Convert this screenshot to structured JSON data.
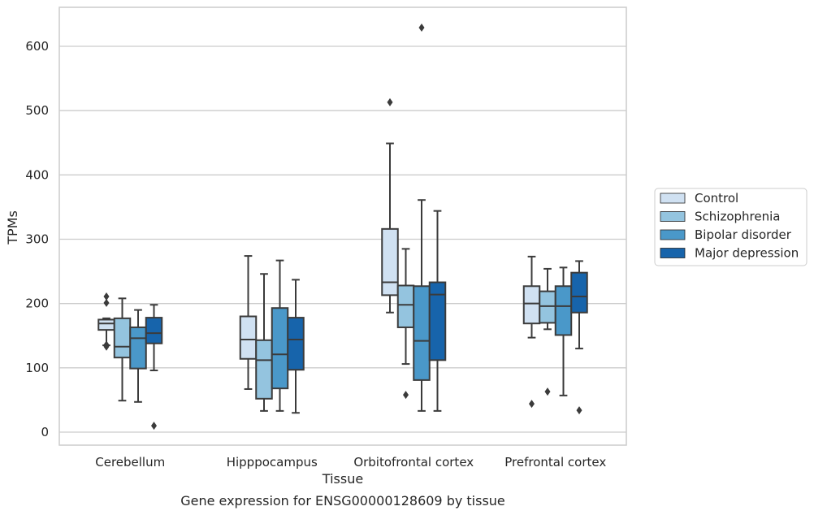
{
  "chart_data": {
    "type": "box",
    "title": "Gene expression for ENSG00000128609 by tissue",
    "xlabel": "Tissue",
    "ylabel": "TPMs",
    "ylim": [
      -20,
      660
    ],
    "yticks": [
      0,
      100,
      200,
      300,
      400,
      500,
      600
    ],
    "grid": "horizontal",
    "legend_position": "right",
    "categories": [
      "Cerebellum",
      "Hipppocampus",
      "Orbitofrontal cortex",
      "Prefrontal cortex"
    ],
    "series": [
      {
        "name": "Control",
        "color": "#d0e1f2",
        "boxes": [
          {
            "whisker_low": 135,
            "q1": 159,
            "median": 169,
            "q3": 175,
            "whisker_high": 177,
            "outliers": [
              136,
              133,
              201,
              211
            ]
          },
          {
            "whisker_low": 67,
            "q1": 114,
            "median": 144,
            "q3": 180,
            "whisker_high": 274,
            "outliers": []
          },
          {
            "whisker_low": 186,
            "q1": 213,
            "median": 233,
            "q3": 316,
            "whisker_high": 449,
            "outliers": [
              513
            ]
          },
          {
            "whisker_low": 147,
            "q1": 169,
            "median": 200,
            "q3": 227,
            "whisker_high": 273,
            "outliers": [
              44
            ]
          }
        ]
      },
      {
        "name": "Schizophrenia",
        "color": "#94c4df",
        "boxes": [
          {
            "whisker_low": 49,
            "q1": 116,
            "median": 133,
            "q3": 177,
            "whisker_high": 208,
            "outliers": []
          },
          {
            "whisker_low": 33,
            "q1": 52,
            "median": 112,
            "q3": 143,
            "whisker_high": 246,
            "outliers": []
          },
          {
            "whisker_low": 106,
            "q1": 163,
            "median": 198,
            "q3": 228,
            "whisker_high": 285,
            "outliers": [
              58
            ]
          },
          {
            "whisker_low": 160,
            "q1": 170,
            "median": 196,
            "q3": 219,
            "whisker_high": 254,
            "outliers": [
              63
            ]
          }
        ]
      },
      {
        "name": "Bipolar disorder",
        "color": "#4a98c9",
        "boxes": [
          {
            "whisker_low": 47,
            "q1": 99,
            "median": 146,
            "q3": 163,
            "whisker_high": 190,
            "outliers": []
          },
          {
            "whisker_low": 33,
            "q1": 68,
            "median": 121,
            "q3": 193,
            "whisker_high": 267,
            "outliers": []
          },
          {
            "whisker_low": 33,
            "q1": 81,
            "median": 142,
            "q3": 227,
            "whisker_high": 361,
            "outliers": [
              629
            ]
          },
          {
            "whisker_low": 57,
            "q1": 151,
            "median": 196,
            "q3": 227,
            "whisker_high": 256,
            "outliers": []
          }
        ]
      },
      {
        "name": "Major depression",
        "color": "#1764ab",
        "boxes": [
          {
            "whisker_low": 96,
            "q1": 138,
            "median": 154,
            "q3": 178,
            "whisker_high": 198,
            "outliers": [
              10
            ]
          },
          {
            "whisker_low": 30,
            "q1": 97,
            "median": 144,
            "q3": 178,
            "whisker_high": 237,
            "outliers": []
          },
          {
            "whisker_low": 33,
            "q1": 112,
            "median": 214,
            "q3": 233,
            "whisker_high": 344,
            "outliers": []
          },
          {
            "whisker_low": 130,
            "q1": 186,
            "median": 211,
            "q3": 248,
            "whisker_high": 266,
            "outliers": [
              34
            ]
          }
        ]
      }
    ]
  }
}
